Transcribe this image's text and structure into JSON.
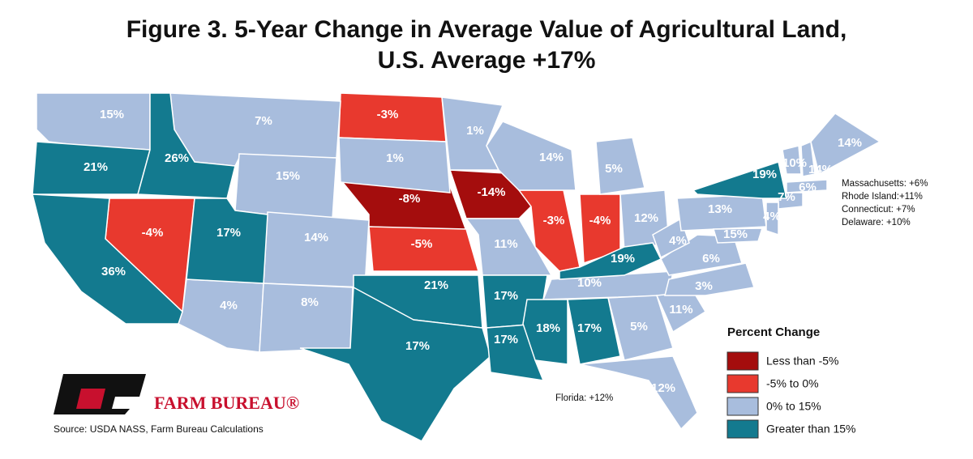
{
  "title": [
    "Figure 3. 5-Year Change in Average Value of Agricultural Land,",
    "U.S. Average +17%"
  ],
  "legend": {
    "title": "Percent Change",
    "classes": [
      {
        "label": "Less than -5%",
        "color": "#a40d0d",
        "regions": [
          "-8%",
          "-14%"
        ]
      },
      {
        "label": "-5% to 0%",
        "color": "#e8392e",
        "regions": [
          "-3%",
          "-4%",
          "-5%",
          "-3%",
          "-4%"
        ]
      },
      {
        "label": "0% to 15%",
        "color": "#a8bddd",
        "regions": [
          "15%",
          "7%",
          "15%",
          "1%",
          "1%",
          "14%",
          "4%",
          "8%",
          "14%",
          "5%",
          "11%",
          "12%",
          "10%",
          "5%",
          "12%",
          "11%",
          "3%",
          "6%",
          "4%",
          "13%",
          "10%",
          "14%",
          "14%",
          "6%",
          "7%",
          "4%",
          "15%"
        ]
      },
      {
        "label": "Greater than 15%",
        "color": "#137a8f",
        "regions": [
          "21%",
          "26%",
          "36%",
          "17%",
          "21%",
          "17%",
          "17%",
          "17%",
          "18%",
          "17%",
          "19%",
          "19%"
        ]
      }
    ]
  },
  "callouts": [
    "Massachusetts: +6%",
    "Rhode Island:+11%",
    "Connecticut: +7%",
    "Delaware: +10%"
  ],
  "florida_note": "Florida: +12%",
  "logo_text": "FARM BUREAU®",
  "source": "Source: USDA NASS, Farm Bureau Calculations"
}
